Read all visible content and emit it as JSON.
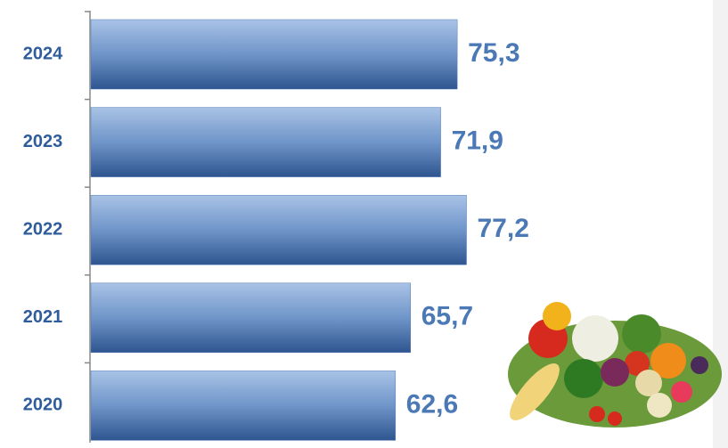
{
  "chart_data": {
    "type": "hbar",
    "categories": [
      "2024",
      "2023",
      "2022",
      "2021",
      "2020"
    ],
    "values": [
      75.3,
      71.9,
      77.2,
      65.7,
      62.6
    ],
    "value_labels": [
      "75,3",
      "71,9",
      "77,2",
      "65,7",
      "62,6"
    ],
    "color": "#4f7bb8"
  }
}
